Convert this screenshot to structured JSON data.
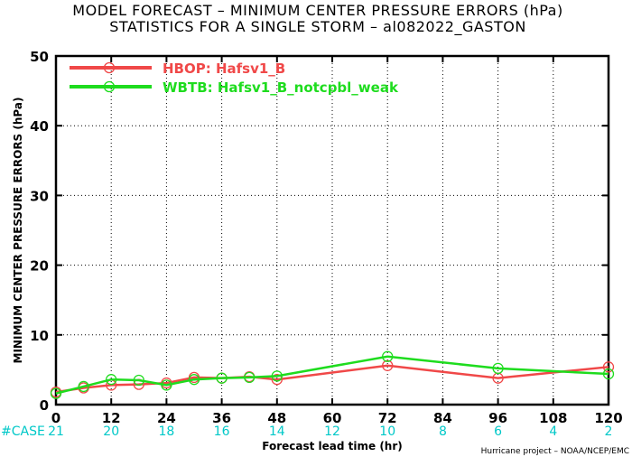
{
  "chart_data": {
    "type": "line",
    "title": "MODEL FORECAST – MINIMUM CENTER PRESSURE ERRORS (hPa)",
    "subtitle": "STATISTICS FOR A SINGLE STORM – al082022_GASTON",
    "xlabel": "Forecast lead time (hr)",
    "ylabel": "MINIMUM CENTER PRESSURE ERRORS (hPa)",
    "xlim": [
      0,
      120
    ],
    "ylim": [
      0,
      50
    ],
    "xticks": [
      0,
      12,
      24,
      36,
      48,
      60,
      72,
      84,
      96,
      108,
      120
    ],
    "yticks": [
      0,
      10,
      20,
      30,
      40,
      50
    ],
    "grid": true,
    "legend_position": "top-left",
    "case_label": "#CASE",
    "cases": [
      {
        "x": 0,
        "n": "21"
      },
      {
        "x": 12,
        "n": "20"
      },
      {
        "x": 24,
        "n": "18"
      },
      {
        "x": 36,
        "n": "16"
      },
      {
        "x": 48,
        "n": "14"
      },
      {
        "x": 60,
        "n": "12"
      },
      {
        "x": 72,
        "n": "10"
      },
      {
        "x": 84,
        "n": "8"
      },
      {
        "x": 96,
        "n": "6"
      },
      {
        "x": 108,
        "n": "4"
      },
      {
        "x": 120,
        "n": "2"
      }
    ],
    "credit": "Hurricane project – NOAA/NCEP/EMC",
    "series": [
      {
        "name": "HBOP: Hafsv1_B",
        "color": "#f04848",
        "x": [
          0,
          6,
          12,
          18,
          24,
          30,
          36,
          42,
          48,
          72,
          96,
          120
        ],
        "y": [
          1.8,
          2.4,
          2.8,
          2.9,
          3.1,
          3.9,
          3.8,
          4.0,
          3.6,
          5.6,
          3.8,
          5.4
        ]
      },
      {
        "name": "WBTB: Hafsv1_B_notcpbl_weak",
        "color": "#1edc1e",
        "x": [
          0,
          6,
          12,
          18,
          24,
          30,
          36,
          42,
          48,
          72,
          96,
          120
        ],
        "y": [
          1.6,
          2.6,
          3.6,
          3.5,
          2.8,
          3.6,
          3.8,
          3.9,
          4.1,
          6.9,
          5.2,
          4.4
        ]
      }
    ]
  }
}
